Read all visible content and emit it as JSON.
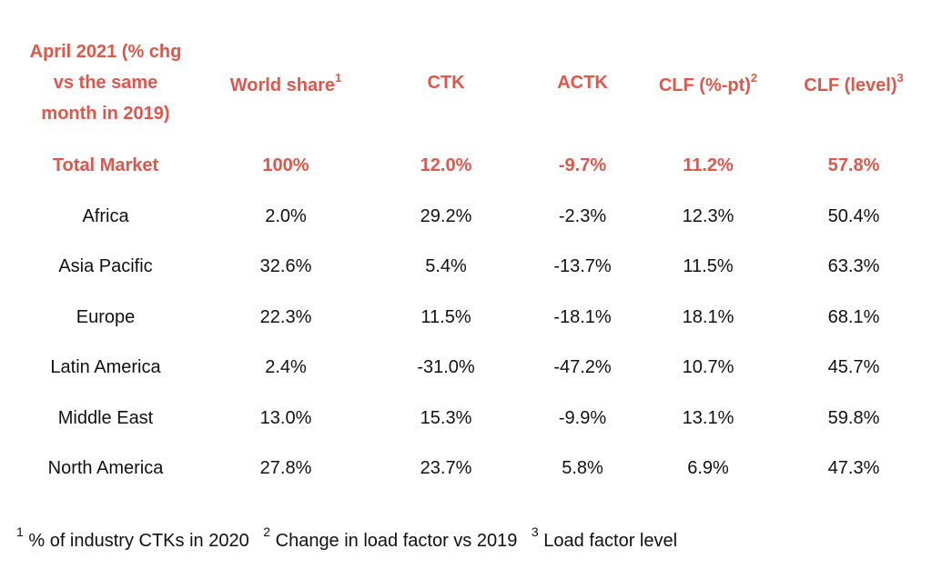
{
  "table": {
    "headers": [
      {
        "label": "April 2021 (% chg vs the same month in 2019)",
        "sup": ""
      },
      {
        "label": "World share",
        "sup": "1"
      },
      {
        "label": "CTK",
        "sup": ""
      },
      {
        "label": "ACTK",
        "sup": ""
      },
      {
        "label": "CLF (%-pt)",
        "sup": "2"
      },
      {
        "label": "CLF (level)",
        "sup": "3"
      }
    ],
    "header_lines": [
      "April 2021 (% chg",
      "vs the same",
      "month in 2019)"
    ],
    "rows": [
      [
        "Total Market",
        "100%",
        "12.0%",
        "-9.7%",
        "11.2%",
        "57.8%"
      ],
      [
        "Africa",
        "2.0%",
        "29.2%",
        "-2.3%",
        "12.3%",
        "50.4%"
      ],
      [
        "Asia Pacific",
        "32.6%",
        "5.4%",
        "-13.7%",
        "11.5%",
        "63.3%"
      ],
      [
        "Europe",
        "22.3%",
        "11.5%",
        "-18.1%",
        "18.1%",
        "68.1%"
      ],
      [
        "Latin America",
        "2.4%",
        "-31.0%",
        "-47.2%",
        "10.7%",
        "45.7%"
      ],
      [
        "Middle East",
        "13.0%",
        "15.3%",
        "-9.9%",
        "13.1%",
        "59.8%"
      ],
      [
        "North America",
        "27.8%",
        "23.7%",
        "5.8%",
        "6.9%",
        "47.3%"
      ]
    ]
  },
  "footnotes": [
    {
      "mark": "1",
      "text": "% of industry CTKs in 2020"
    },
    {
      "mark": "2",
      "text": "Change in load factor vs 2019"
    },
    {
      "mark": "3",
      "text": "Load factor level"
    }
  ],
  "colors": {
    "accent": "#e0564a",
    "text": "#111111",
    "background": "#ffffff"
  }
}
